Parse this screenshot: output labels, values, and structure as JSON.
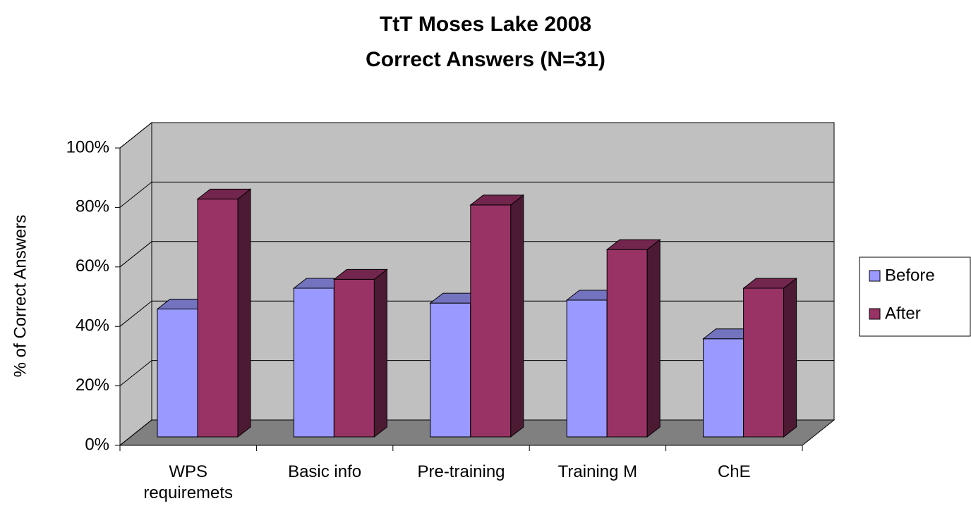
{
  "chart_data": {
    "type": "bar3d",
    "title": [
      "TtT Moses Lake 2008",
      "Correct Answers (N=31)"
    ],
    "y_label": "% of Correct Answers",
    "categories": [
      "WPS requiremets",
      "Basic info",
      "Pre-training",
      "Training M",
      "ChE"
    ],
    "series": [
      {
        "name": "Before",
        "color": "#9999ff",
        "values": [
          43,
          50,
          45,
          46,
          33
        ]
      },
      {
        "name": "After",
        "color": "#993366",
        "values": [
          80,
          53,
          78,
          63,
          50
        ]
      }
    ],
    "ylim": [
      0,
      100
    ],
    "yticks": [
      {
        "value": 0,
        "label": "0%"
      },
      {
        "value": 20,
        "label": "20%"
      },
      {
        "value": 40,
        "label": "40%"
      },
      {
        "value": 60,
        "label": "60%"
      },
      {
        "value": 80,
        "label": "80%"
      },
      {
        "value": 100,
        "label": "100%"
      }
    ],
    "grid": true,
    "legend": "right"
  }
}
